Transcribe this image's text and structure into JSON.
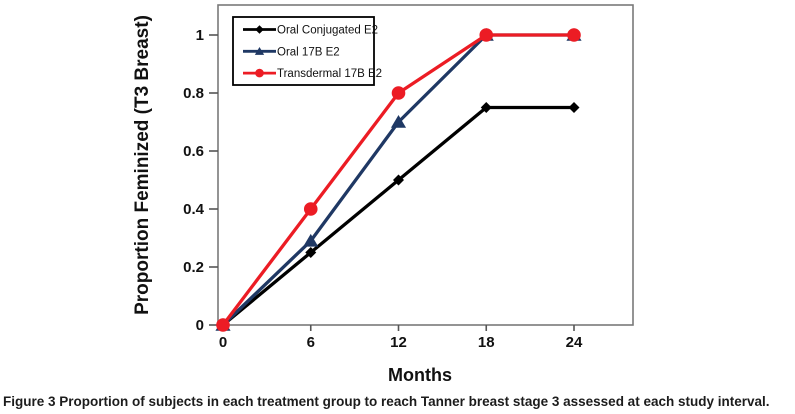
{
  "chart_data": {
    "type": "line",
    "x": [
      0,
      6,
      12,
      18,
      24
    ],
    "xtick_labels": [
      "0",
      "6",
      "12",
      "18",
      "24"
    ],
    "ytick_values": [
      0,
      0.2,
      0.4,
      0.6,
      0.8,
      1
    ],
    "ytick_labels": [
      "0",
      "0.2",
      "0.4",
      "0.6",
      "0.8",
      "1"
    ],
    "xlabel": "Months",
    "ylabel": "Proportion Feminized (T3 Breast)",
    "xlim": [
      0,
      28
    ],
    "ylim": [
      0,
      1
    ],
    "grid": false,
    "legend_position": "top-left-inside",
    "series": [
      {
        "name": "Oral Conjugated E2",
        "color": "#000000",
        "marker": "diamond",
        "values": [
          0,
          0.25,
          0.5,
          0.75,
          0.75
        ]
      },
      {
        "name": "Oral 17B E2",
        "color": "#1f3864",
        "marker": "triangle",
        "values": [
          0,
          0.29,
          0.7,
          1.0,
          1.0
        ]
      },
      {
        "name": "Transdermal 17B E2",
        "color": "#ec1c24",
        "marker": "circle",
        "values": [
          0,
          0.4,
          0.8,
          1.0,
          1.0
        ]
      }
    ]
  },
  "caption": {
    "label": "Figure 3",
    "text": "Proportion of subjects in each treatment group to reach Tanner breast stage 3 assessed at each study interval."
  },
  "style_colors": {
    "plot_border": "#7a7a7a",
    "tick": "#555555",
    "legend_border": "#000000",
    "background": "#ffffff"
  }
}
